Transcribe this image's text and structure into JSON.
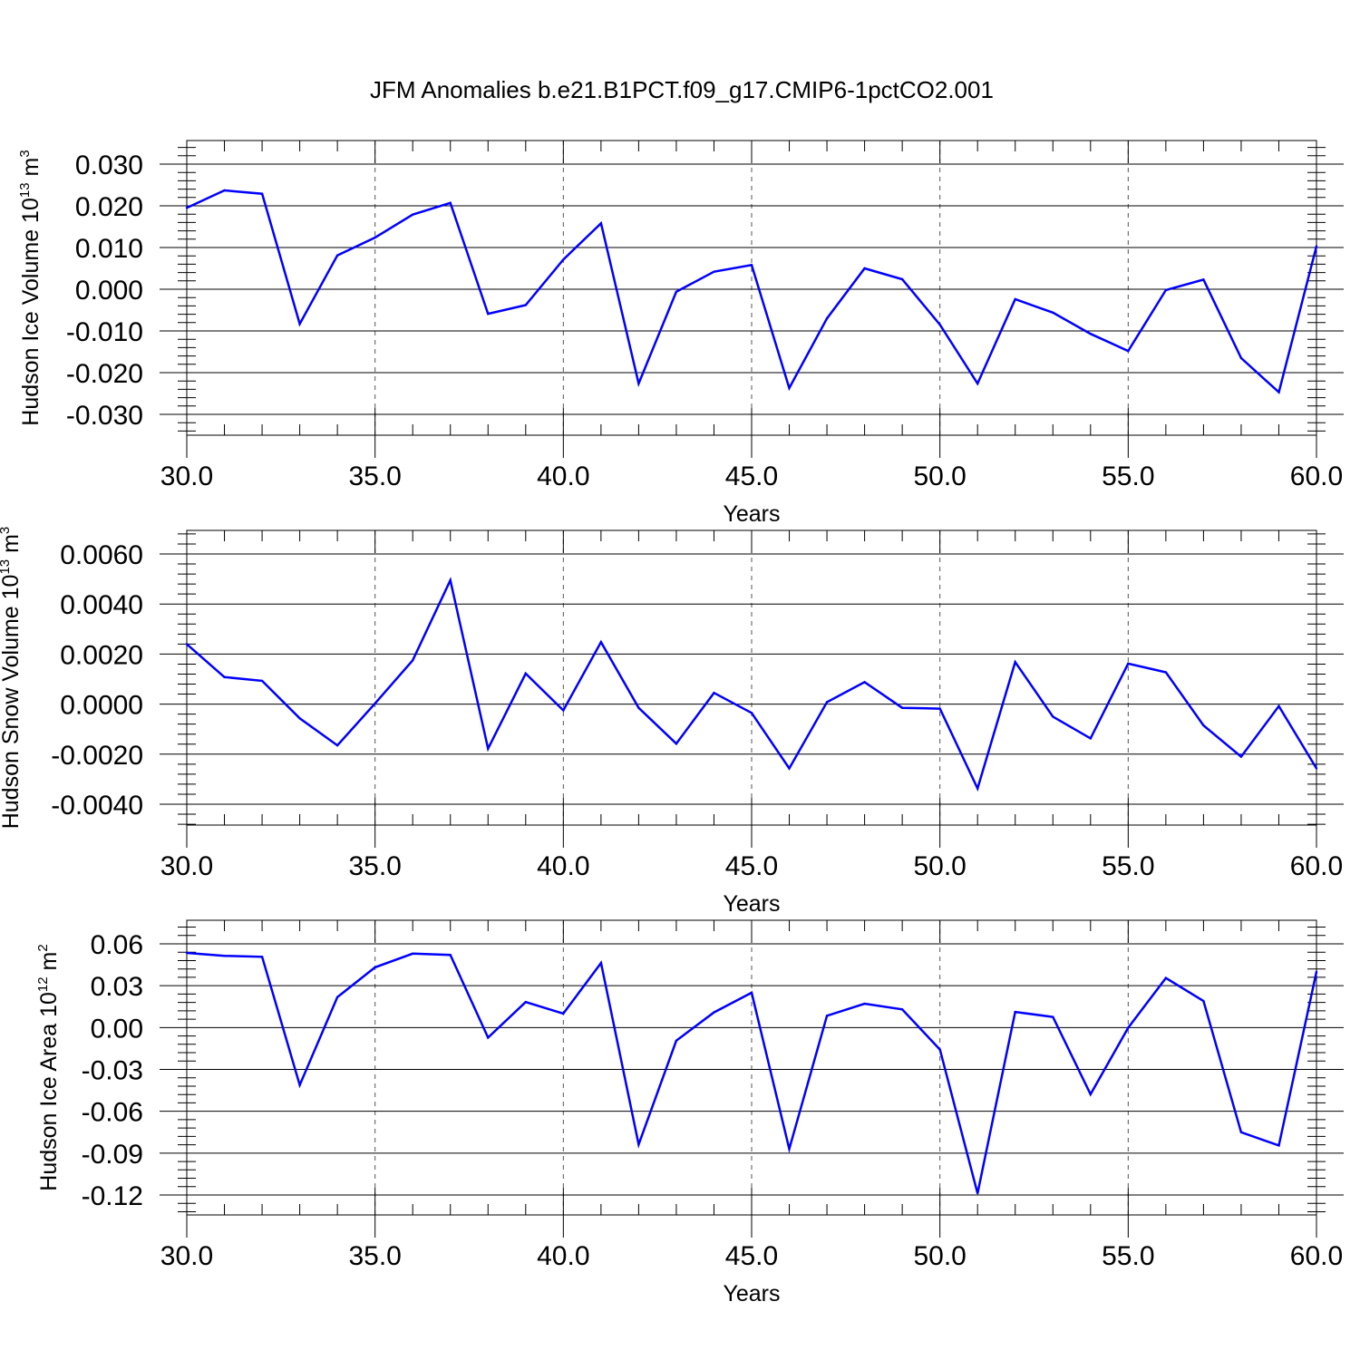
{
  "title": "JFM Anomalies b.e21.B1PCT.f09_g17.CMIP6-1pctCO2.001",
  "line_color": "#0000ff",
  "chart_data": [
    {
      "type": "line",
      "ylabel_text": "Hudson Ice Volume 10",
      "ylabel_exp": "13",
      "ylabel_unit": " m",
      "ylabel_unit_exp": "3",
      "xlabel": "Years",
      "xlim": [
        30,
        60
      ],
      "ylim": [
        -0.03,
        0.03
      ],
      "yticks": [
        -0.03,
        -0.02,
        -0.01,
        0.0,
        0.01,
        0.02,
        0.03
      ],
      "ytick_labels": [
        "-0.030",
        "-0.020",
        "-0.010",
        "0.000",
        "0.010",
        "0.020",
        "0.030"
      ],
      "xticks": [
        30,
        35,
        40,
        45,
        50,
        55,
        60
      ],
      "xtick_labels": [
        "30.0",
        "35.0",
        "40.0",
        "45.0",
        "50.0",
        "55.0",
        "60.0"
      ],
      "gridlines_x": [
        35,
        40,
        45,
        50,
        55
      ],
      "x": [
        30,
        31,
        32,
        33,
        34,
        35,
        36,
        37,
        38,
        39,
        40,
        41,
        42,
        43,
        44,
        45,
        46,
        47,
        48,
        49,
        50,
        51,
        52,
        53,
        54,
        55,
        56,
        57,
        58,
        59,
        60
      ],
      "values": [
        0.0195,
        0.0237,
        0.0229,
        -0.0083,
        0.0081,
        0.0124,
        0.0179,
        0.0207,
        -0.0059,
        -0.0038,
        0.0071,
        0.0158,
        -0.0226,
        -0.0006,
        0.0042,
        0.0058,
        -0.0237,
        -0.007,
        0.005,
        0.0024,
        -0.0085,
        -0.0226,
        -0.0024,
        -0.0056,
        -0.0107,
        -0.0148,
        -0.0002,
        0.0023,
        -0.0165,
        -0.0247,
        0.0103
      ]
    },
    {
      "type": "line",
      "ylabel_text": "Hudson Snow Volume 10",
      "ylabel_exp": "13",
      "ylabel_unit": " m",
      "ylabel_unit_exp": "3",
      "xlabel": "Years",
      "xlim": [
        30,
        60
      ],
      "ylim": [
        -0.004,
        0.006
      ],
      "yticks": [
        -0.004,
        -0.002,
        0.0,
        0.002,
        0.004,
        0.006
      ],
      "ytick_labels": [
        "-0.0040",
        "-0.0020",
        "0.0000",
        "0.0020",
        "0.0040",
        "0.0060"
      ],
      "xticks": [
        30,
        35,
        40,
        45,
        50,
        55,
        60
      ],
      "xtick_labels": [
        "30.0",
        "35.0",
        "40.0",
        "45.0",
        "50.0",
        "55.0",
        "60.0"
      ],
      "gridlines_x": [
        35,
        40,
        45,
        50,
        55
      ],
      "x": [
        30,
        31,
        32,
        33,
        34,
        35,
        36,
        37,
        38,
        39,
        40,
        41,
        42,
        43,
        44,
        45,
        46,
        47,
        48,
        49,
        50,
        51,
        52,
        53,
        54,
        55,
        56,
        57,
        58,
        59,
        60
      ],
      "values": [
        0.0024,
        0.00108,
        0.00093,
        -0.00057,
        -0.00165,
        3e-05,
        0.00175,
        0.00495,
        -0.00178,
        0.00122,
        -0.00025,
        0.00248,
        -0.00015,
        -0.00158,
        0.00045,
        -0.00035,
        -0.00257,
        8e-05,
        0.00088,
        -0.00015,
        -0.00018,
        -0.00337,
        0.00168,
        -0.0005,
        -0.00137,
        0.00162,
        0.00127,
        -0.00085,
        -0.0021,
        -8e-05,
        -0.00257
      ]
    },
    {
      "type": "line",
      "ylabel_text": "Hudson Ice Area 10",
      "ylabel_exp": "12",
      "ylabel_unit": " m",
      "ylabel_unit_exp": "2",
      "xlabel": "Years",
      "xlim": [
        30,
        60
      ],
      "ylim": [
        -0.12,
        0.06
      ],
      "yticks": [
        -0.12,
        -0.09,
        -0.06,
        -0.03,
        0.0,
        0.03,
        0.06
      ],
      "ytick_labels": [
        "-0.12",
        "-0.09",
        "-0.06",
        "-0.03",
        "0.00",
        "0.03",
        "0.06"
      ],
      "xticks": [
        30,
        35,
        40,
        45,
        50,
        55,
        60
      ],
      "xtick_labels": [
        "30.0",
        "35.0",
        "40.0",
        "45.0",
        "50.0",
        "55.0",
        "60.0"
      ],
      "gridlines_x": [
        35,
        40,
        45,
        50,
        55
      ],
      "x": [
        30,
        31,
        32,
        33,
        34,
        35,
        36,
        37,
        38,
        39,
        40,
        41,
        42,
        43,
        44,
        45,
        46,
        47,
        48,
        49,
        50,
        51,
        52,
        53,
        54,
        55,
        56,
        57,
        58,
        59,
        60
      ],
      "values": [
        0.0535,
        0.0514,
        0.0507,
        -0.0412,
        0.0218,
        0.0432,
        0.053,
        0.0521,
        -0.0072,
        0.0183,
        0.01,
        0.0463,
        -0.0838,
        -0.0094,
        0.0109,
        0.025,
        -0.087,
        0.0085,
        0.0171,
        0.013,
        -0.0158,
        -0.1188,
        0.0112,
        0.0076,
        -0.0478,
        -0.0002,
        0.0355,
        0.019,
        -0.075,
        -0.0845,
        0.04
      ]
    }
  ]
}
